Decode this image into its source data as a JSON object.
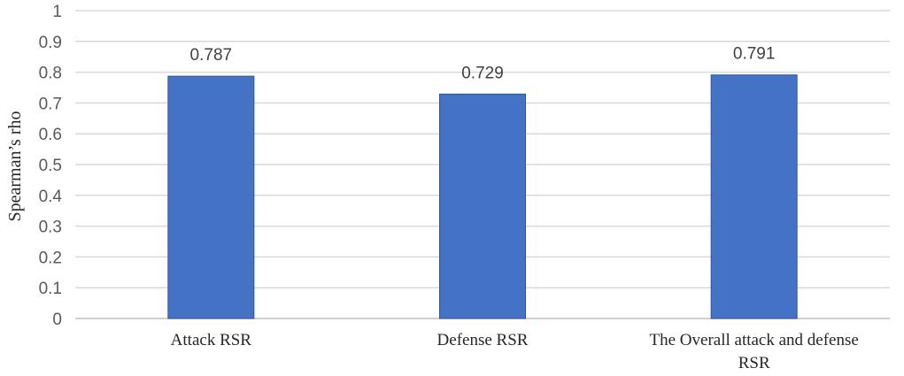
{
  "chart_data": {
    "type": "bar",
    "title": "",
    "xlabel": "",
    "ylabel": "Spearman’s rho",
    "ylim": [
      0,
      1
    ],
    "yticks": [
      0,
      0.1,
      0.2,
      0.3,
      0.4,
      0.5,
      0.6,
      0.7,
      0.8,
      0.9,
      1
    ],
    "ytick_labels": [
      "0",
      "0.1",
      "0.2",
      "0.3",
      "0.4",
      "0.5",
      "0.6",
      "0.7",
      "0.8",
      "0.9",
      "1"
    ],
    "grid": true,
    "legend": "none",
    "bar_color": "#4472c4",
    "categories": [
      [
        "Attack RSR"
      ],
      [
        "Defense RSR"
      ],
      [
        "The Overall attack and defense",
        "RSR"
      ]
    ],
    "values": [
      0.787,
      0.729,
      0.791
    ],
    "value_labels": [
      "0.787",
      "0.729",
      "0.791"
    ]
  }
}
